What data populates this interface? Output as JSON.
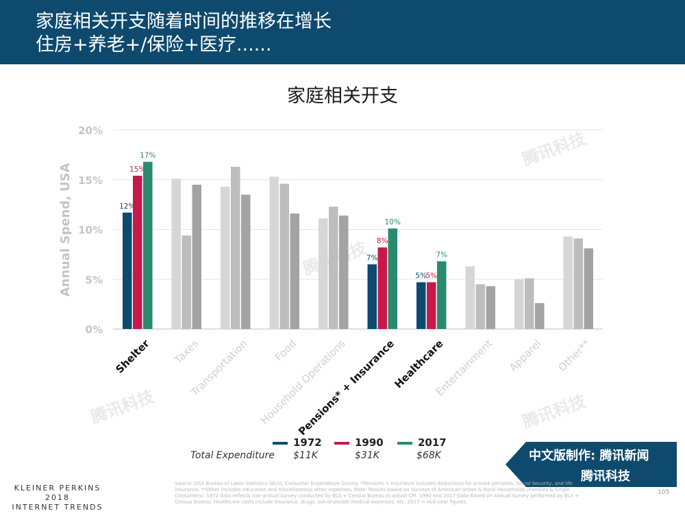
{
  "header": {
    "line1": "家庭相关开支随着时间的推移在增长",
    "line2": "住房+养老+/保险+医疗......"
  },
  "chart_data": {
    "type": "bar",
    "title": "家庭相关开支",
    "ylabel": "Annual Spend, USA",
    "ylim": [
      0,
      20
    ],
    "yticks": [
      "0%",
      "5%",
      "10%",
      "15%",
      "20%"
    ],
    "categories": [
      "Shelter",
      "Taxes",
      "Transportation",
      "Food",
      "Household Operations",
      "Pensions* + Insurance",
      "Healthcare",
      "Entertainment",
      "Apparel",
      "Other**"
    ],
    "highlighted": [
      "Shelter",
      "Pensions* + Insurance",
      "Healthcare"
    ],
    "series": [
      {
        "name": "1972",
        "values": [
          11.7,
          15.1,
          14.3,
          15.3,
          11.1,
          6.5,
          4.7,
          6.3,
          5.0,
          9.3
        ]
      },
      {
        "name": "1990",
        "values": [
          15.4,
          9.4,
          16.3,
          14.6,
          12.3,
          8.2,
          4.7,
          4.5,
          5.1,
          9.1
        ]
      },
      {
        "name": "2017",
        "values": [
          16.8,
          14.5,
          13.5,
          11.6,
          11.4,
          10.1,
          6.8,
          4.3,
          2.6,
          8.1
        ]
      }
    ],
    "data_labels": {
      "Shelter": [
        "12%",
        "15%",
        "17%"
      ],
      "Pensions* + Insurance": [
        "7%",
        "8%",
        "10%"
      ],
      "Healthcare": [
        "5%",
        "5%",
        "7%"
      ]
    },
    "grid": true,
    "legend_position": "bottom-center"
  },
  "legend": {
    "total_label": "Total Expenditure",
    "items": [
      {
        "year": "1972",
        "total": "$11K",
        "color": "#0d4a6e"
      },
      {
        "year": "1990",
        "total": "$31K",
        "color": "#c8184a"
      },
      {
        "year": "2017",
        "total": "$68K",
        "color": "#2a8a6e"
      }
    ]
  },
  "colors": {
    "dim": [
      "#d6d6d6",
      "#bdbdbd",
      "#a3a3a3"
    ],
    "highlight": [
      "#0d4a6e",
      "#c8184a",
      "#2a8a6e"
    ]
  },
  "brand": {
    "line1": "中文版制作: 腾讯新闻",
    "line2": "腾讯科技"
  },
  "watermark": "腾讯科技",
  "footer": {
    "kp_line1": "KLEINER PERKINS",
    "kp_line2": "2018",
    "kp_line3": "INTERNET TRENDS",
    "source": "Source: USA Bureau of Labor Statistics (BLS), Consumer Expenditure Survey. *Pensions + Insurance includes deductions for private pensions, Social Security, and life insurance. **Other includes education and miscellaneous other expenses. Note: Results based on Surveys of American Urban & Rural Households (Families & Single Consumers). 1972 data reflects non-annual survey conducted by BLS + Census Bureau to adjust CPI. 1990 and 2017 Data Based on Annual Survey performed by BLS + Census Bureau. Healthcare costs include insurance, drugs, out-of-pocket medical expenses, etc. 2017 = mid-year figures.",
    "page_number": "105"
  }
}
